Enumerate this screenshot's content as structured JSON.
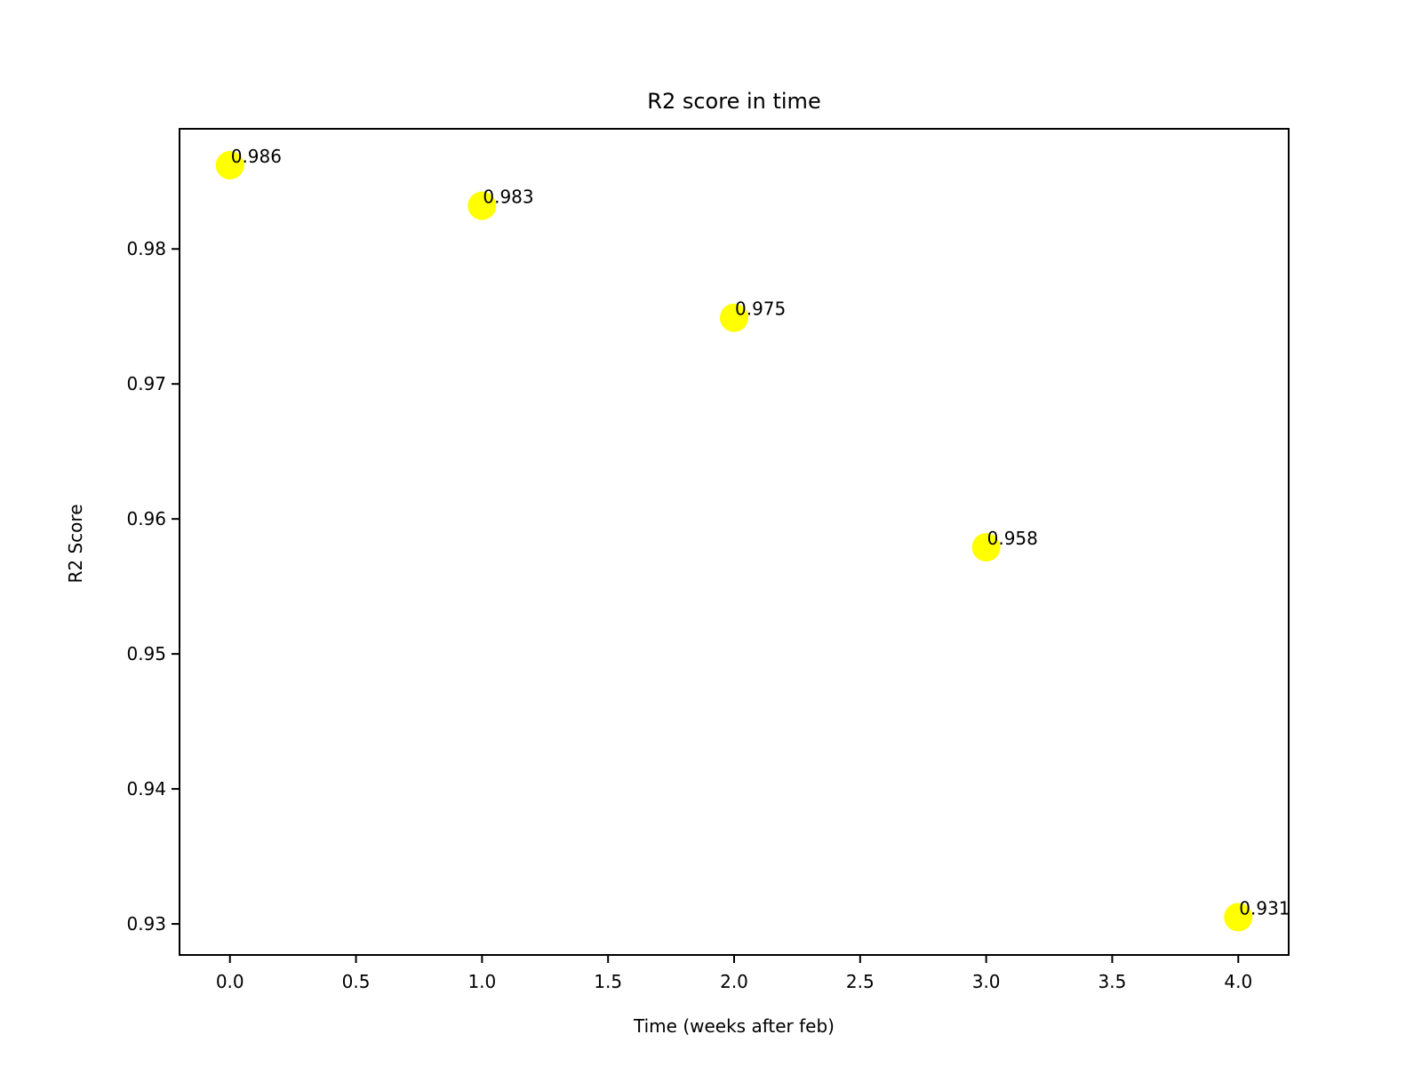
{
  "chart_data": {
    "type": "scatter",
    "title": "R2 score in time",
    "xlabel": "Time (weeks after feb)",
    "ylabel": "R2 Score",
    "xlim": [
      -0.2,
      4.2
    ],
    "ylim": [
      0.9277,
      0.9889
    ],
    "x_ticks": [
      0.0,
      0.5,
      1.0,
      1.5,
      2.0,
      2.5,
      3.0,
      3.5,
      4.0
    ],
    "x_tick_labels": [
      "0.0",
      "0.5",
      "1.0",
      "1.5",
      "2.0",
      "2.5",
      "3.0",
      "3.5",
      "4.0"
    ],
    "y_ticks": [
      0.93,
      0.94,
      0.95,
      0.96,
      0.97,
      0.98
    ],
    "y_tick_labels": [
      "0.93",
      "0.94",
      "0.95",
      "0.96",
      "0.97",
      "0.98"
    ],
    "grid": false,
    "marker_color": "#ffff00",
    "points": [
      {
        "x": 0,
        "y": 0.9862,
        "label": "0.986"
      },
      {
        "x": 1,
        "y": 0.9832,
        "label": "0.983"
      },
      {
        "x": 2,
        "y": 0.9749,
        "label": "0.975"
      },
      {
        "x": 3,
        "y": 0.9579,
        "label": "0.958"
      },
      {
        "x": 4,
        "y": 0.9305,
        "label": "0.931"
      }
    ]
  }
}
